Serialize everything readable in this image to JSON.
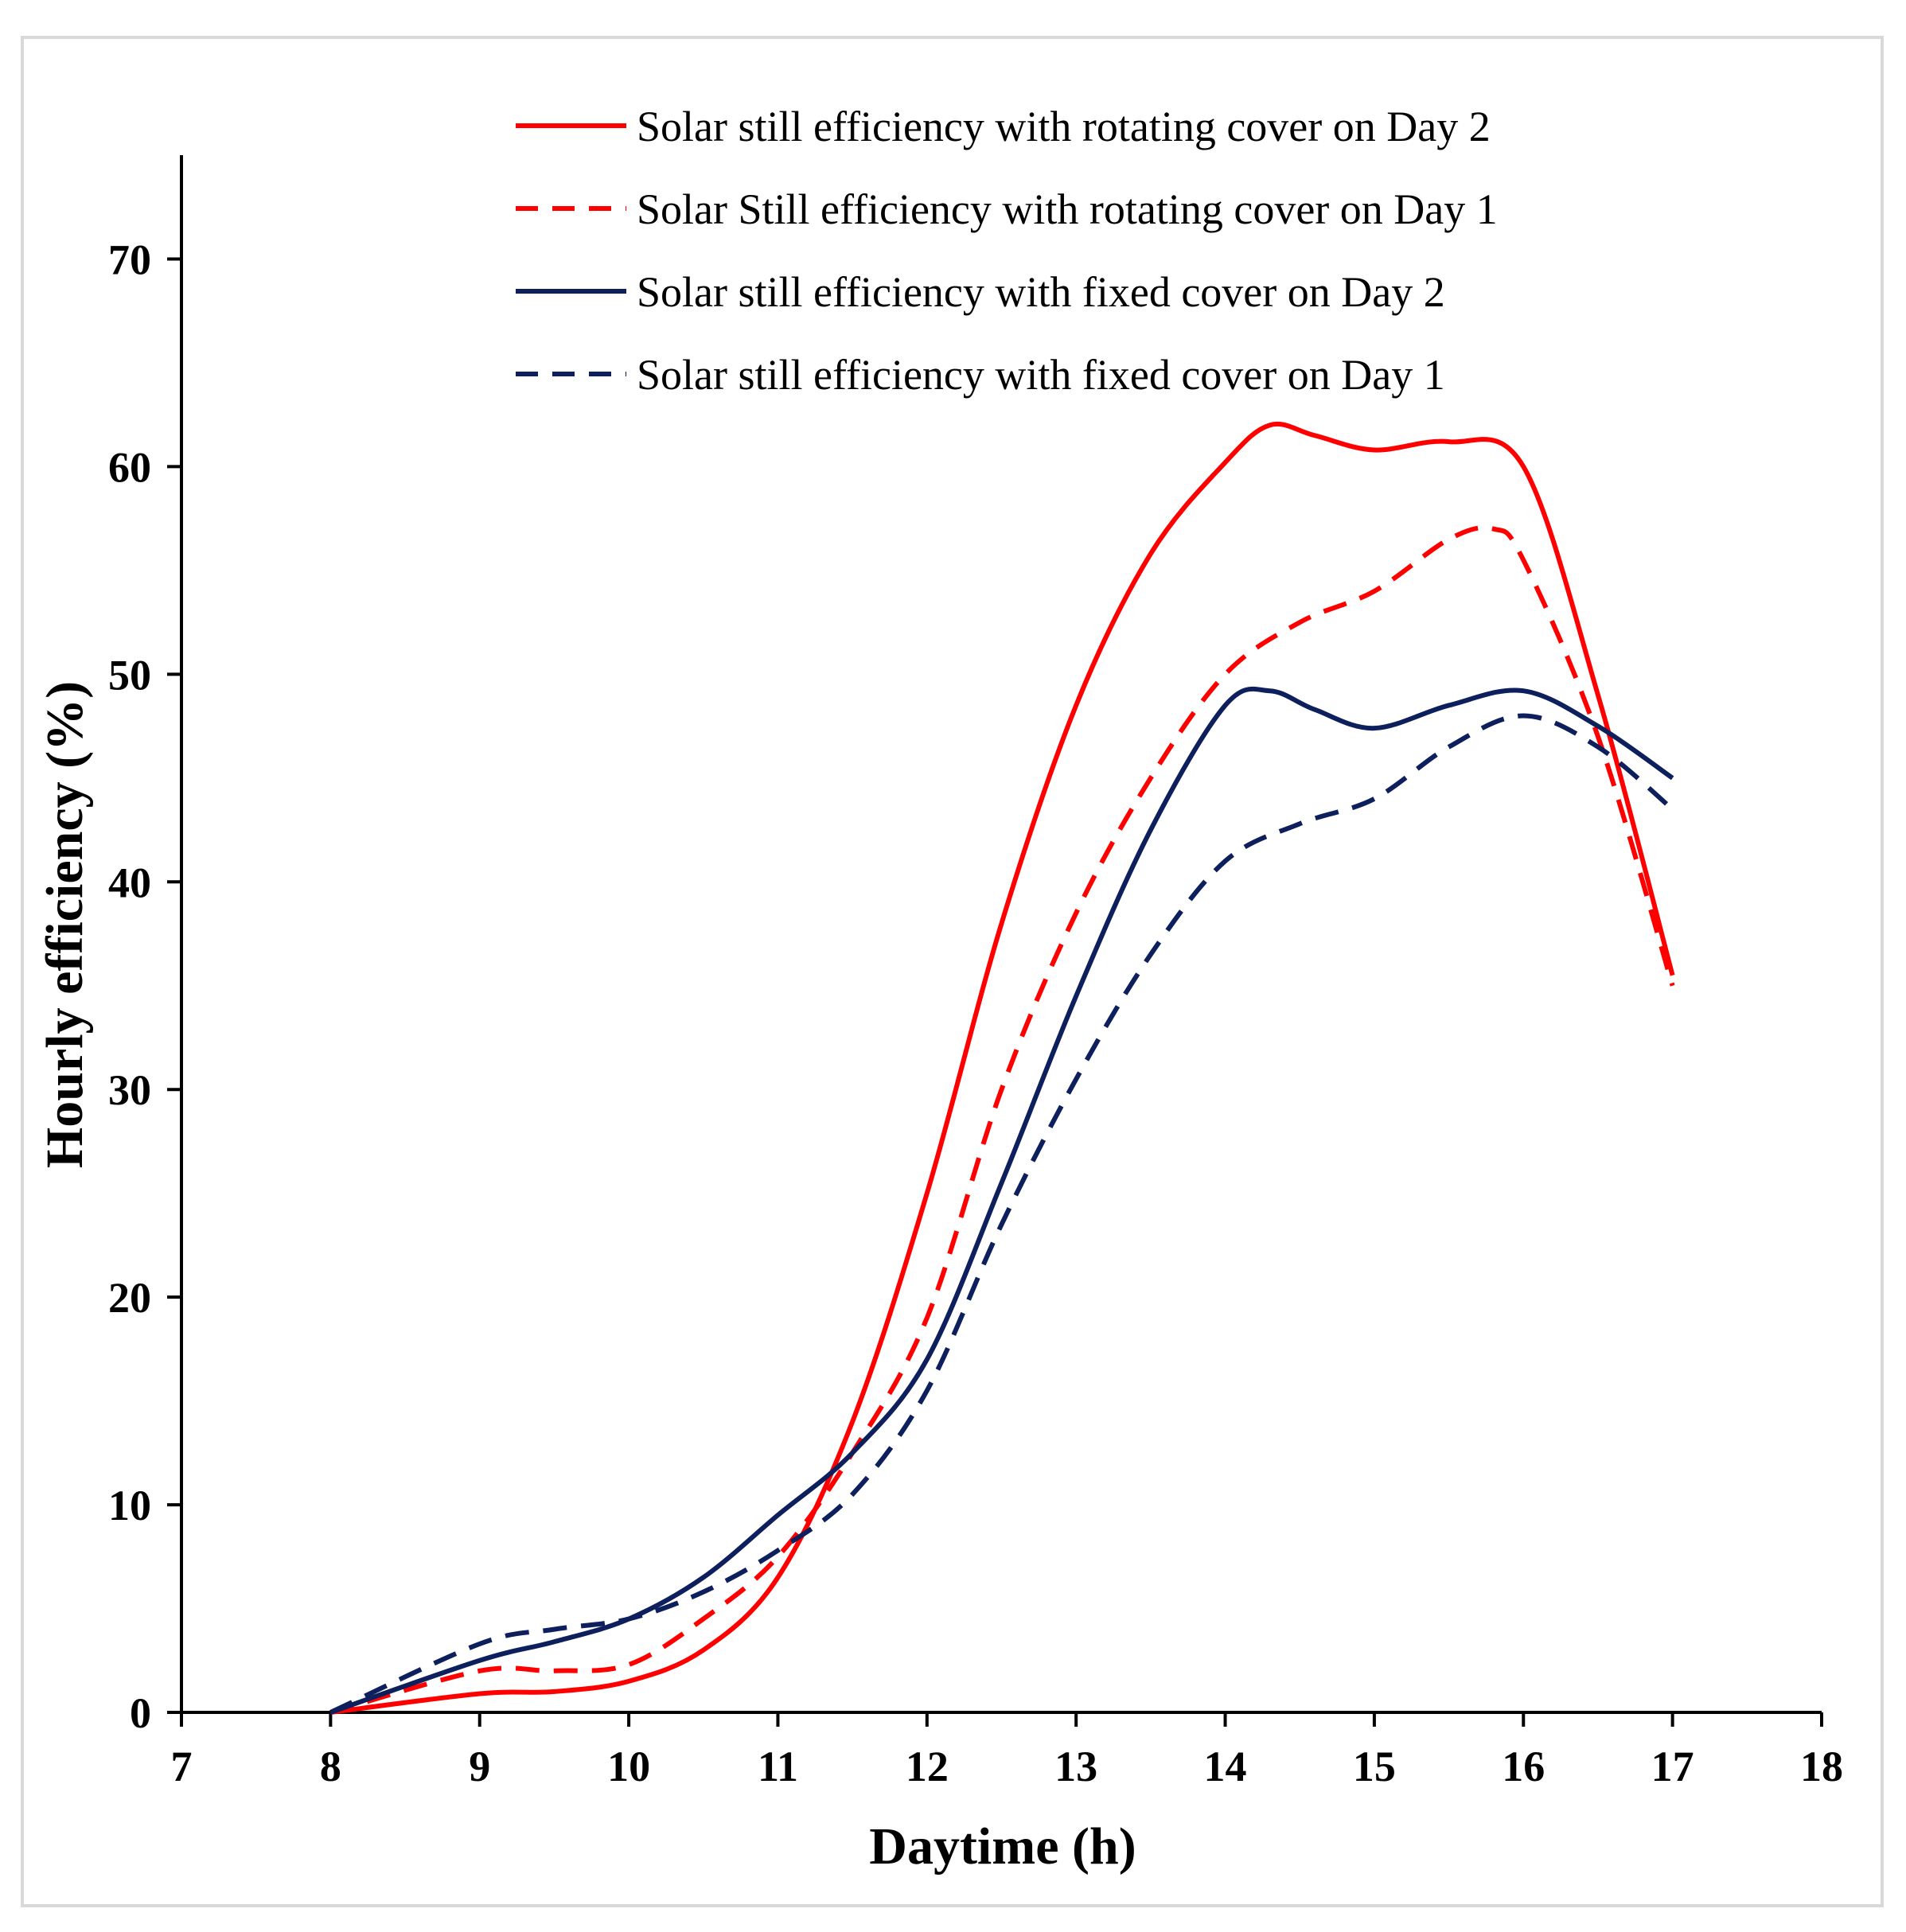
{
  "chart_data": {
    "type": "line",
    "title": "",
    "xlabel": "Daytime (h)",
    "ylabel": "Hourly efficiency (%)",
    "xlim": [
      7,
      18
    ],
    "ylim": [
      0,
      75
    ],
    "xticks": [
      "7",
      "8",
      "9",
      "10",
      "11",
      "12",
      "13",
      "14",
      "15",
      "16",
      "17",
      "18"
    ],
    "yticks": [
      "0",
      "10",
      "20",
      "30",
      "40",
      "50",
      "60",
      "70"
    ],
    "grid": false,
    "legend_position": "top",
    "series": [
      {
        "name": "Solar still efficiency with rotating cover on Day 2",
        "color": "#ff0000",
        "style": "solid",
        "x": [
          8,
          9,
          9.5,
          10,
          10.5,
          11,
          11.5,
          12,
          12.5,
          13,
          13.5,
          14,
          14.3,
          14.6,
          15,
          15.5,
          16,
          16.5,
          17
        ],
        "y": [
          0,
          0.9,
          1.0,
          1.5,
          3.0,
          6.5,
          14.0,
          25.0,
          38.0,
          48.5,
          55.8,
          60.2,
          62.0,
          61.5,
          60.8,
          61.2,
          60.0,
          49.0,
          35.5
        ]
      },
      {
        "name": "Solar Still efficiency with rotating cover on Day 1",
        "color": "#ff0000",
        "style": "dashed",
        "x": [
          8,
          9,
          9.5,
          10,
          10.5,
          11,
          11.5,
          12,
          12.5,
          13,
          13.5,
          14,
          14.5,
          15,
          15.5,
          15.8,
          16,
          16.5,
          17
        ],
        "y": [
          0,
          2.0,
          2.0,
          2.3,
          4.5,
          7.5,
          12.5,
          19.0,
          30.0,
          38.5,
          45.0,
          50.0,
          52.5,
          54.0,
          56.5,
          57.0,
          55.5,
          47.0,
          35.0
        ]
      },
      {
        "name": "Solar still efficiency with fixed cover on Day 2",
        "color": "#0d1f5c",
        "style": "solid",
        "x": [
          8,
          9,
          9.5,
          10,
          10.5,
          11,
          11.5,
          12,
          12.5,
          13,
          13.5,
          14,
          14.3,
          14.6,
          15,
          15.5,
          16,
          16.5,
          17
        ],
        "y": [
          0,
          2.5,
          3.4,
          4.5,
          6.5,
          9.5,
          12.5,
          17.0,
          25.5,
          34.5,
          42.5,
          48.5,
          49.2,
          48.3,
          47.4,
          48.5,
          49.2,
          47.5,
          45.0
        ]
      },
      {
        "name": "Solar still efficiency with fixed cover on Day 1",
        "color": "#0d1f5c",
        "style": "dashed",
        "x": [
          8,
          9,
          9.5,
          10,
          10.5,
          11,
          11.5,
          12,
          12.5,
          13,
          13.5,
          14,
          14.5,
          15,
          15.5,
          16,
          16.5,
          17
        ],
        "y": [
          0,
          3.3,
          4.0,
          4.5,
          5.8,
          7.8,
          10.5,
          15.5,
          23.5,
          30.5,
          36.5,
          41.0,
          42.8,
          44.0,
          46.5,
          48.0,
          46.5,
          43.5
        ]
      }
    ]
  }
}
